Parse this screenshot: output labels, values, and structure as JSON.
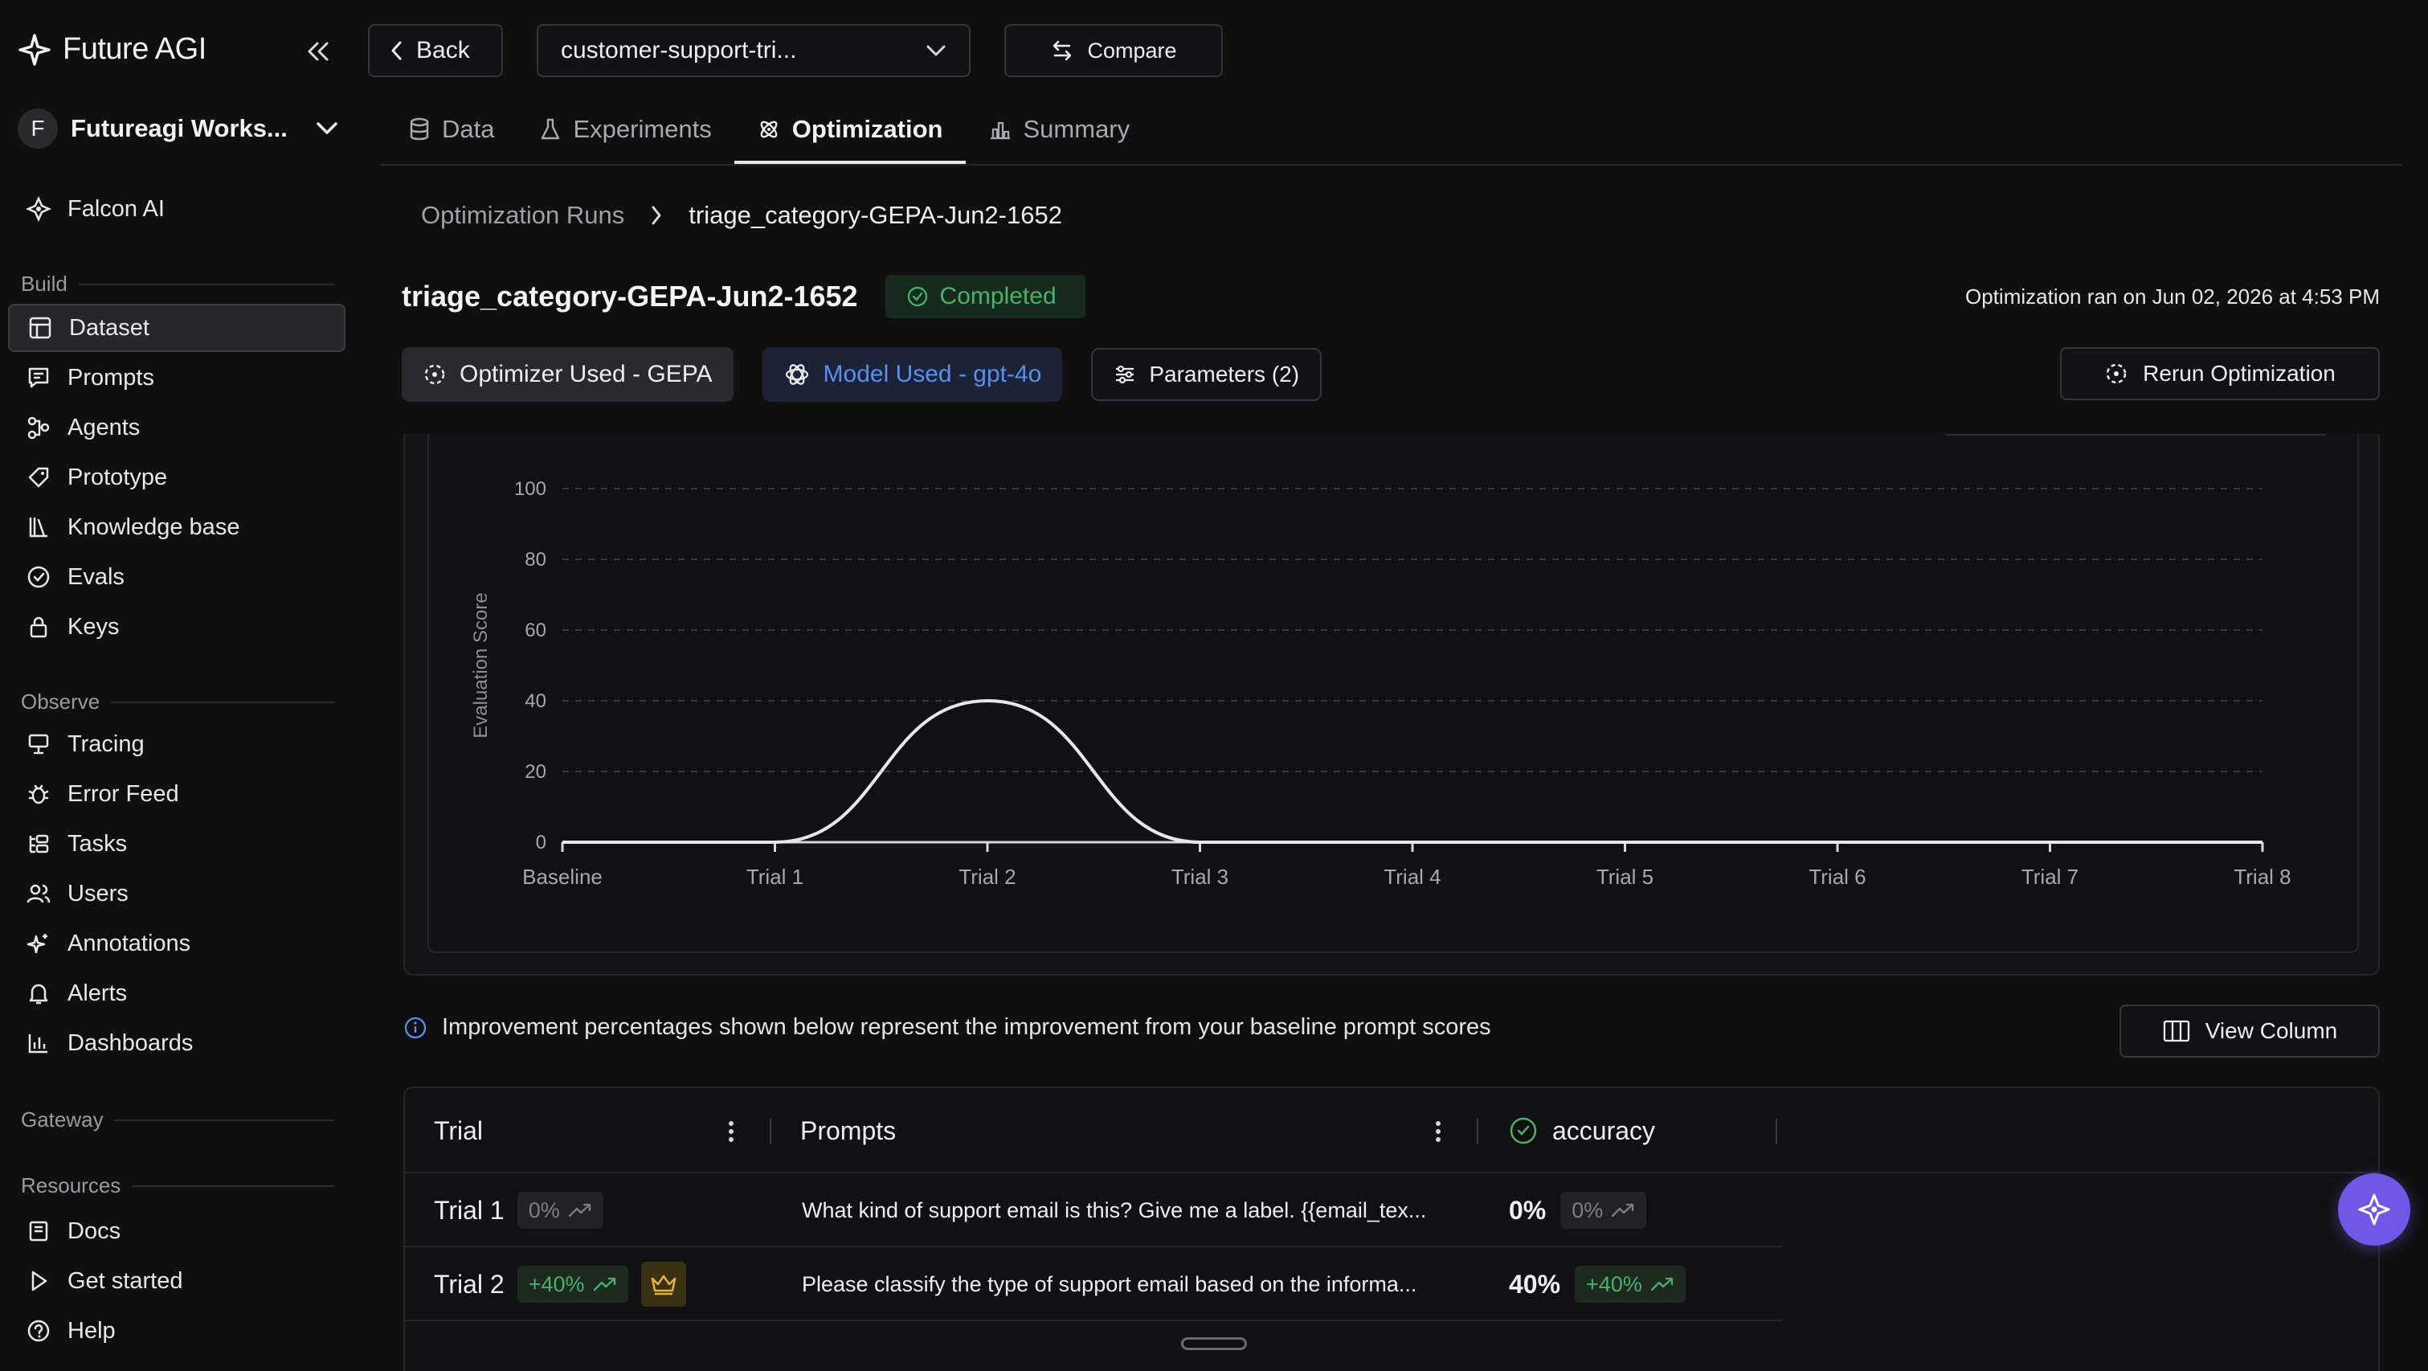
{
  "sidebar": {
    "brand": "Future AGI",
    "workspace_initial": "F",
    "workspace_name": "Futureagi Works...",
    "falcon": "Falcon AI",
    "sections": {
      "build": "Build",
      "observe": "Observe",
      "gateway": "Gateway",
      "resources": "Resources"
    },
    "build_items": [
      {
        "label": "Dataset",
        "icon": "table-icon",
        "active": true
      },
      {
        "label": "Prompts",
        "icon": "prompt-icon"
      },
      {
        "label": "Agents",
        "icon": "agents-icon"
      },
      {
        "label": "Prototype",
        "icon": "tag-icon"
      },
      {
        "label": "Knowledge base",
        "icon": "library-icon"
      },
      {
        "label": "Evals",
        "icon": "check-circle-icon"
      },
      {
        "label": "Keys",
        "icon": "lock-icon"
      }
    ],
    "observe_items": [
      {
        "label": "Tracing",
        "icon": "tracing-icon"
      },
      {
        "label": "Error Feed",
        "icon": "bug-icon"
      },
      {
        "label": "Tasks",
        "icon": "tasks-icon"
      },
      {
        "label": "Users",
        "icon": "users-icon"
      },
      {
        "label": "Annotations",
        "icon": "sparkle-icon"
      },
      {
        "label": "Alerts",
        "icon": "bell-icon"
      },
      {
        "label": "Dashboards",
        "icon": "bar-chart-icon"
      }
    ],
    "resource_items": [
      {
        "label": "Docs",
        "icon": "book-icon"
      },
      {
        "label": "Get started",
        "icon": "play-icon"
      },
      {
        "label": "Help",
        "icon": "help-icon"
      }
    ]
  },
  "topbar": {
    "back": "Back",
    "dataset_select": "customer-support-tri...",
    "compare": "Compare"
  },
  "tabs": [
    "Data",
    "Experiments",
    "Optimization",
    "Summary"
  ],
  "active_tab": "Optimization",
  "breadcrumb": {
    "parent": "Optimization Runs",
    "current": "triage_category-GEPA-Jun2-1652"
  },
  "run": {
    "title": "triage_category-GEPA-Jun2-1652",
    "status": "Completed",
    "ran_on": "Optimization ran on Jun 02, 2026 at 4:53 PM",
    "optimizer": "Optimizer Used - GEPA",
    "model": "Model Used - gpt-4o",
    "parameters": "Parameters (2)",
    "rerun": "Rerun Optimization"
  },
  "chart_data": {
    "type": "line",
    "ylabel": "Evaluation Score",
    "xlabel": "",
    "ylim": [
      0,
      100
    ],
    "yticks": [
      0,
      20,
      40,
      60,
      80,
      100
    ],
    "grid": true,
    "categories": [
      "Baseline",
      "Trial 1",
      "Trial 2",
      "Trial 3",
      "Trial 4",
      "Trial 5",
      "Trial 6",
      "Trial 7",
      "Trial 8"
    ],
    "series": [
      {
        "values": [
          0,
          0,
          40,
          0,
          0,
          0,
          0,
          0,
          0
        ],
        "color": "#e8e8ea"
      }
    ]
  },
  "info": {
    "text": "Improvement percentages shown below represent the improvement from your baseline prompt scores",
    "view_column": "View Column"
  },
  "table": {
    "headers": {
      "trial": "Trial",
      "prompts": "Prompts",
      "accuracy": "accuracy"
    },
    "rows": [
      {
        "trial": "Trial 1",
        "trial_delta": "0%",
        "best": false,
        "prompt": "What kind of support email is this? Give me a label. {{email_tex...",
        "accuracy": "0%",
        "accuracy_delta": "0%"
      },
      {
        "trial": "Trial 2",
        "trial_delta": "+40%",
        "best": true,
        "prompt": "Please classify the type of support email based on the informa...",
        "accuracy": "40%",
        "accuracy_delta": "+40%"
      }
    ]
  },
  "colors": {
    "background": "#0f0f10",
    "success": "#4caf6a",
    "model_blue": "#5b8def",
    "fab": "#7157e6"
  }
}
